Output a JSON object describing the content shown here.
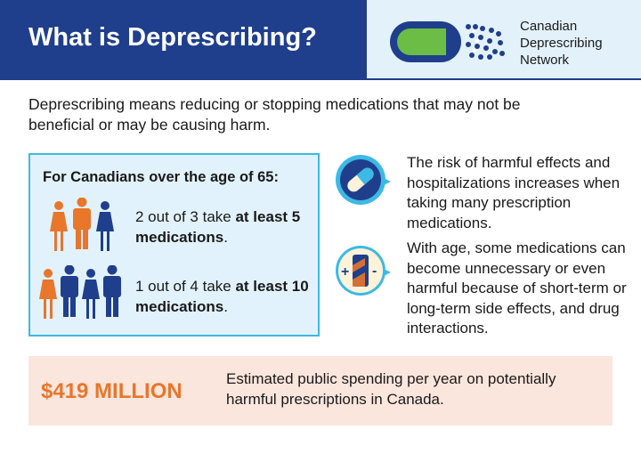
{
  "header": {
    "title": "What is Deprescribing?",
    "logo_text": [
      "Canadian",
      "Deprescribing",
      "Network"
    ]
  },
  "intro": "Deprescribing means reducing or stopping medications that may not be beneficial or may be causing harm.",
  "stats_box": {
    "heading": "For Canadians over the age of 65:",
    "stats": [
      {
        "prefix": "2 out of 3 take ",
        "bold": "at least 5 medications",
        "suffix": "."
      },
      {
        "prefix": "1 out of 4 take ",
        "bold": "at least 10 medications",
        "suffix": "."
      }
    ]
  },
  "facts": [
    {
      "icon": "pill-capsule-icon",
      "text": "The risk of harmful effects and hospitalizations increases when taking many prescription medications."
    },
    {
      "icon": "medication-plus-minus-icon",
      "text": "With age, some medications can become unnecessary or even harmful because of short-term or long-term side effects, and drug interactions."
    }
  ],
  "spending": {
    "amount": "$419 MILLION",
    "text": "Estimated public spending per year on potentially harmful prescriptions in Canada."
  },
  "colors": {
    "navy": "#1f3f8c",
    "orange": "#e8762b",
    "cyan": "#3db9e5",
    "light_blue": "#e2f2fc",
    "peach": "#fbe6dd",
    "green": "#6cbd45"
  }
}
